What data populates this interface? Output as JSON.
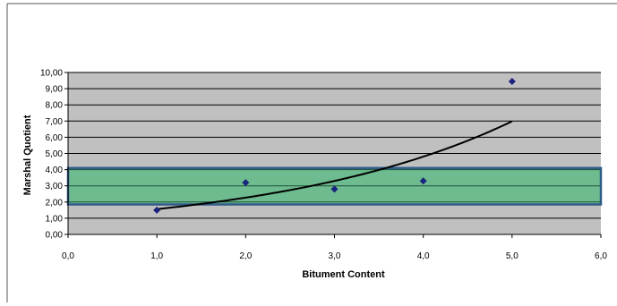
{
  "chart_data": {
    "type": "scatter",
    "title": "",
    "xlabel": "Bitument Content",
    "ylabel": "Marshal Quotient",
    "xlim": [
      0,
      6
    ],
    "ylim": [
      0,
      10
    ],
    "x_ticks": [
      "0,0",
      "1,0",
      "2,0",
      "3,0",
      "4,0",
      "5,0",
      "6,0"
    ],
    "y_ticks": [
      "0,00",
      "1,00",
      "2,00",
      "3,00",
      "4,00",
      "5,00",
      "6,00",
      "7,00",
      "8,00",
      "9,00",
      "10,00"
    ],
    "grid": "horizontal",
    "legend": "none",
    "series": [
      {
        "x": [
          1,
          2,
          3,
          4,
          5
        ],
        "y": [
          1.5,
          3.2,
          2.8,
          3.3,
          9.45
        ],
        "marker": "diamond",
        "color": "#1a237e"
      }
    ],
    "trendline": {
      "type": "exponential",
      "x_range": [
        1,
        5
      ],
      "a": 1.0736,
      "b": 0.3745,
      "color": "#000000"
    },
    "band": {
      "y_range": [
        1.85,
        4.1
      ],
      "fill": "#6dbb8f",
      "stroke": "#2f5d8a"
    },
    "colors": {
      "plot_background": "#c0c0c0",
      "gridline": "#000000"
    }
  }
}
